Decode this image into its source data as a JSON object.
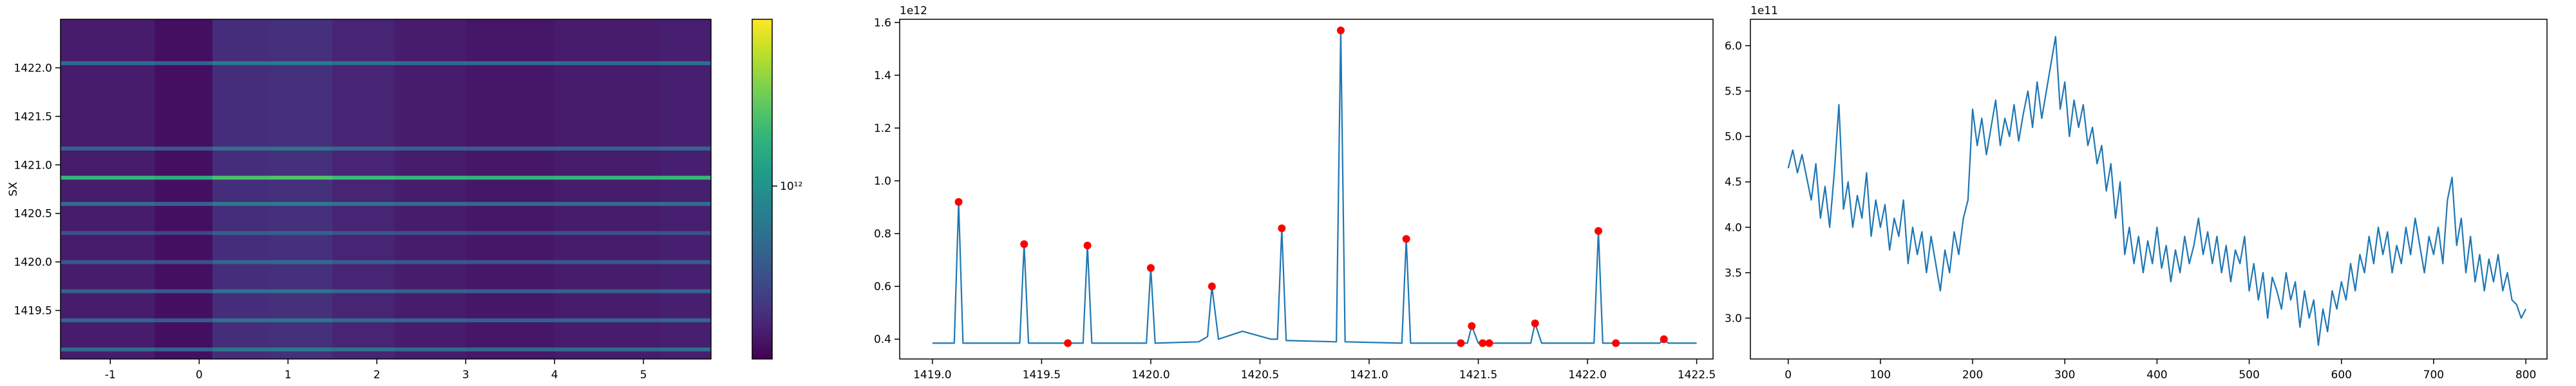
{
  "chart_data": [
    {
      "type": "heatmap",
      "ylabel": "SX",
      "xlim": [
        -1.56,
        5.76
      ],
      "ylim": [
        1419.0,
        1422.5
      ],
      "xticks": [
        -1,
        0,
        1,
        2,
        3,
        4,
        5
      ],
      "yticks": [
        1419.5,
        {
          "value": 1420.0,
          "label": "1420.0"
        },
        1420.5,
        {
          "value": 1421.0,
          "label": "1421.0"
        },
        1421.5,
        {
          "value": 1422.0,
          "label": "1422.0"
        }
      ],
      "xbins": [
        -1.56,
        -0.5,
        0.15,
        0.8,
        1.5,
        2.2,
        3.0,
        4.0,
        5.2,
        5.76
      ],
      "ybins": [
        1419.0,
        1419.08,
        1419.12,
        1419.38,
        1419.42,
        1419.68,
        1419.72,
        1419.98,
        1420.02,
        1420.28,
        1420.32,
        1420.58,
        1420.62,
        1420.85,
        1420.89,
        1421.15,
        1421.19,
        1422.03,
        1422.07,
        1422.5
      ],
      "z": [
        [
          380000000000.0,
          350000000000.0,
          426000000000.0,
          437000000000.0,
          399000000000.0,
          380000000000.0,
          369000000000.0,
          380000000000.0,
          388000000000.0
        ],
        [
          700000000000.0,
          644000000000.0,
          784000000000.0,
          805000000000.0,
          735000000000.0,
          700000000000.0,
          679000000000.0,
          700000000000.0,
          714000000000.0
        ],
        [
          380000000000.0,
          350000000000.0,
          426000000000.0,
          437000000000.0,
          399000000000.0,
          380000000000.0,
          369000000000.0,
          380000000000.0,
          388000000000.0
        ],
        [
          650000000000.0,
          598000000000.0,
          728000000000.0,
          748000000000.0,
          683000000000.0,
          650000000000.0,
          631000000000.0,
          650000000000.0,
          663000000000.0
        ],
        [
          380000000000.0,
          350000000000.0,
          426000000000.0,
          437000000000.0,
          399000000000.0,
          380000000000.0,
          369000000000.0,
          380000000000.0,
          388000000000.0
        ],
        [
          650000000000.0,
          598000000000.0,
          728000000000.0,
          748000000000.0,
          683000000000.0,
          650000000000.0,
          631000000000.0,
          650000000000.0,
          663000000000.0
        ],
        [
          380000000000.0,
          350000000000.0,
          426000000000.0,
          437000000000.0,
          399000000000.0,
          380000000000.0,
          369000000000.0,
          380000000000.0,
          388000000000.0
        ],
        [
          600000000000.0,
          552000000000.0,
          672000000000.0,
          690000000000.0,
          630000000000.0,
          600000000000.0,
          582000000000.0,
          600000000000.0,
          612000000000.0
        ],
        [
          380000000000.0,
          350000000000.0,
          426000000000.0,
          437000000000.0,
          399000000000.0,
          380000000000.0,
          369000000000.0,
          380000000000.0,
          388000000000.0
        ],
        [
          550000000000.0,
          506000000000.0,
          616000000000.0,
          633000000000.0,
          578000000000.0,
          550000000000.0,
          534000000000.0,
          550000000000.0,
          561000000000.0
        ],
        [
          380000000000.0,
          350000000000.0,
          426000000000.0,
          437000000000.0,
          399000000000.0,
          380000000000.0,
          369000000000.0,
          380000000000.0,
          388000000000.0
        ],
        [
          700000000000.0,
          644000000000.0,
          784000000000.0,
          805000000000.0,
          735000000000.0,
          700000000000.0,
          679000000000.0,
          700000000000.0,
          714000000000.0
        ],
        [
          380000000000.0,
          350000000000.0,
          426000000000.0,
          437000000000.0,
          399000000000.0,
          380000000000.0,
          369000000000.0,
          380000000000.0,
          388000000000.0
        ],
        [
          1400000000000.0,
          1290000000000.0,
          1570000000000.0,
          1610000000000.0,
          1470000000000.0,
          1400000000000.0,
          1360000000000.0,
          1400000000000.0,
          1430000000000.0
        ],
        [
          380000000000.0,
          350000000000.0,
          426000000000.0,
          437000000000.0,
          399000000000.0,
          380000000000.0,
          369000000000.0,
          380000000000.0,
          388000000000.0
        ],
        [
          650000000000.0,
          598000000000.0,
          728000000000.0,
          748000000000.0,
          683000000000.0,
          650000000000.0,
          631000000000.0,
          650000000000.0,
          663000000000.0
        ],
        [
          380000000000.0,
          350000000000.0,
          426000000000.0,
          437000000000.0,
          399000000000.0,
          380000000000.0,
          369000000000.0,
          380000000000.0,
          388000000000.0
        ],
        [
          700000000000.0,
          644000000000.0,
          784000000000.0,
          805000000000.0,
          735000000000.0,
          700000000000.0,
          679000000000.0,
          700000000000.0,
          714000000000.0
        ],
        [
          380000000000.0,
          350000000000.0,
          426000000000.0,
          437000000000.0,
          399000000000.0,
          380000000000.0,
          369000000000.0,
          380000000000.0,
          388000000000.0
        ]
      ],
      "colormap": "viridis",
      "color_scale": "log",
      "clim": [
        320000000000.0,
        3000000000000.0
      ],
      "cticks": [
        {
          "value": 1000000000000.0,
          "label": "10¹²"
        }
      ]
    },
    {
      "type": "line",
      "y_offset_label": "1e12",
      "xlim": [
        1418.85,
        1422.575
      ],
      "ylim": [
        0.325,
        1.612
      ],
      "xticks": [
        {
          "value": 1419.0,
          "label": "1419.0"
        },
        1419.5,
        {
          "value": 1420.0,
          "label": "1420.0"
        },
        1420.5,
        {
          "value": 1421.0,
          "label": "1421.0"
        },
        1421.5,
        {
          "value": 1422.0,
          "label": "1422.0"
        },
        1422.5
      ],
      "yticks": [
        0.4,
        0.6,
        0.8,
        {
          "value": 1.0,
          "label": "1.0"
        },
        1.2,
        1.4,
        1.6
      ],
      "series": [
        {
          "type": "line",
          "color": "#1f77b4",
          "x": [
            1419.0,
            1419.1,
            1419.12,
            1419.14,
            1419.4,
            1419.42,
            1419.44,
            1419.69,
            1419.71,
            1419.73,
            1419.98,
            1420.0,
            1420.02,
            1420.22,
            1420.26,
            1420.28,
            1420.31,
            1420.42,
            1420.55,
            1420.58,
            1420.6,
            1420.62,
            1420.85,
            1420.87,
            1420.89,
            1421.15,
            1421.17,
            1421.19,
            1421.45,
            1421.47,
            1421.5,
            1421.74,
            1421.76,
            1421.79,
            1422.03,
            1422.05,
            1422.07,
            1422.33,
            1422.35,
            1422.37,
            1422.5
          ],
          "values": [
            0.385,
            0.385,
            0.92,
            0.385,
            0.385,
            0.76,
            0.385,
            0.385,
            0.755,
            0.385,
            0.385,
            0.67,
            0.385,
            0.39,
            0.41,
            0.6,
            0.4,
            0.43,
            0.4,
            0.4,
            0.82,
            0.395,
            0.39,
            1.57,
            0.39,
            0.385,
            0.78,
            0.385,
            0.385,
            0.45,
            0.385,
            0.385,
            0.46,
            0.385,
            0.385,
            0.81,
            0.385,
            0.385,
            0.4,
            0.385,
            0.385
          ]
        },
        {
          "type": "scatter",
          "color": "#ff0000",
          "x": [
            1419.12,
            1419.42,
            1419.62,
            1419.71,
            1420.0,
            1420.28,
            1420.6,
            1420.87,
            1421.17,
            1421.42,
            1421.47,
            1421.52,
            1421.55,
            1421.76,
            1422.05,
            1422.13,
            1422.35
          ],
          "values": [
            0.92,
            0.76,
            0.385,
            0.755,
            0.67,
            0.6,
            0.82,
            1.57,
            0.78,
            0.385,
            0.45,
            0.385,
            0.385,
            0.46,
            0.81,
            0.385,
            0.4
          ]
        }
      ]
    },
    {
      "type": "line",
      "y_offset_label": "1e11",
      "xlim": [
        -41,
        823
      ],
      "ylim": [
        2.55,
        6.29
      ],
      "xticks": [
        0,
        100,
        200,
        300,
        400,
        500,
        600,
        700,
        800
      ],
      "yticks": [
        {
          "value": 3.0,
          "label": "3.0"
        },
        3.5,
        {
          "value": 4.0,
          "label": "4.0"
        },
        4.5,
        {
          "value": 5.0,
          "label": "5.0"
        },
        5.5,
        {
          "value": 6.0,
          "label": "6.0"
        }
      ],
      "series": [
        {
          "type": "line",
          "color": "#1f77b4",
          "x": [
            0,
            5,
            10,
            15,
            20,
            25,
            30,
            35,
            40,
            45,
            50,
            55,
            60,
            65,
            70,
            75,
            80,
            85,
            90,
            95,
            100,
            105,
            110,
            115,
            120,
            125,
            130,
            135,
            140,
            145,
            150,
            155,
            160,
            165,
            170,
            175,
            180,
            185,
            190,
            195,
            200,
            205,
            210,
            215,
            220,
            225,
            230,
            235,
            240,
            245,
            250,
            255,
            260,
            265,
            270,
            275,
            280,
            285,
            290,
            295,
            300,
            305,
            310,
            315,
            320,
            325,
            330,
            335,
            340,
            345,
            350,
            355,
            360,
            365,
            370,
            375,
            380,
            385,
            390,
            395,
            400,
            405,
            410,
            415,
            420,
            425,
            430,
            435,
            440,
            445,
            450,
            455,
            460,
            465,
            470,
            475,
            480,
            485,
            490,
            495,
            500,
            505,
            510,
            515,
            520,
            525,
            530,
            535,
            540,
            545,
            550,
            555,
            560,
            565,
            570,
            575,
            580,
            585,
            590,
            595,
            600,
            605,
            610,
            615,
            620,
            625,
            630,
            635,
            640,
            645,
            650,
            655,
            660,
            665,
            670,
            675,
            680,
            685,
            690,
            695,
            700,
            705,
            710,
            715,
            720,
            725,
            730,
            735,
            740,
            745,
            750,
            755,
            760,
            765,
            770,
            775,
            780,
            785,
            790,
            795,
            800
          ],
          "values": [
            4.65,
            4.85,
            4.6,
            4.8,
            4.55,
            4.3,
            4.7,
            4.1,
            4.45,
            4.0,
            4.6,
            5.35,
            4.2,
            4.5,
            4.0,
            4.35,
            4.1,
            4.6,
            3.9,
            4.3,
            4.0,
            4.25,
            3.75,
            4.1,
            3.9,
            4.3,
            3.6,
            4.0,
            3.7,
            3.95,
            3.5,
            3.9,
            3.6,
            3.3,
            3.75,
            3.5,
            3.95,
            3.7,
            4.1,
            4.3,
            5.3,
            4.9,
            5.2,
            4.8,
            5.1,
            5.4,
            4.9,
            5.2,
            5.0,
            5.35,
            4.95,
            5.25,
            5.5,
            5.1,
            5.6,
            5.2,
            5.5,
            5.8,
            6.1,
            5.3,
            5.6,
            5.0,
            5.4,
            5.1,
            5.35,
            4.9,
            5.1,
            4.7,
            4.9,
            4.4,
            4.7,
            4.1,
            4.5,
            3.7,
            4.0,
            3.6,
            3.9,
            3.5,
            3.85,
            3.6,
            4.0,
            3.55,
            3.8,
            3.4,
            3.75,
            3.5,
            3.9,
            3.6,
            3.8,
            4.1,
            3.7,
            3.95,
            3.6,
            3.9,
            3.5,
            3.8,
            3.4,
            3.75,
            3.6,
            3.9,
            3.3,
            3.6,
            3.2,
            3.5,
            3.0,
            3.45,
            3.3,
            3.1,
            3.5,
            3.2,
            3.4,
            2.9,
            3.3,
            3.0,
            3.2,
            2.7,
            3.1,
            2.85,
            3.3,
            3.1,
            3.4,
            3.2,
            3.6,
            3.3,
            3.7,
            3.5,
            3.9,
            3.6,
            4.0,
            3.7,
            3.95,
            3.5,
            3.8,
            3.6,
            4.0,
            3.7,
            4.1,
            3.8,
            3.5,
            3.9,
            3.7,
            4.0,
            3.6,
            4.3,
            4.55,
            3.8,
            4.1,
            3.5,
            3.9,
            3.4,
            3.7,
            3.3,
            3.65,
            3.4,
            3.7,
            3.3,
            3.5,
            3.2,
            3.15,
            3.0,
            3.1
          ]
        }
      ]
    }
  ]
}
